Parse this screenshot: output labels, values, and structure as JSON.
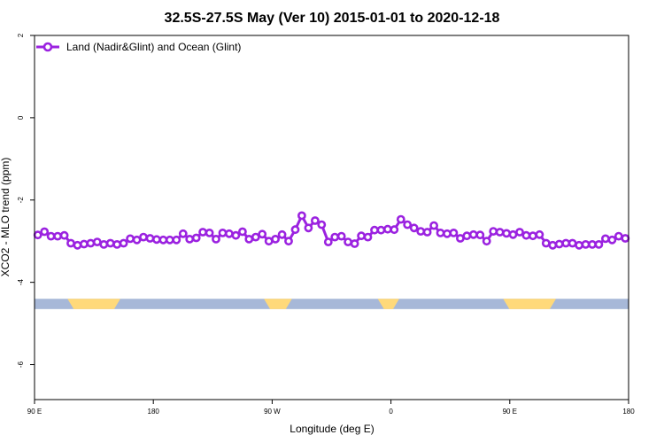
{
  "chart_data": {
    "type": "line",
    "title": "32.5S-27.5S May (Ver 10)   2015-01-01 to 2020-12-18",
    "xlabel": "Longitude (deg E)",
    "ylabel": "XCO2 - MLO trend (ppm)",
    "xlim": [
      90,
      450
    ],
    "ylim": [
      -8,
      2
    ],
    "x_ticks": [
      {
        "value": 90,
        "label": "90 E"
      },
      {
        "value": 162,
        "label": "180"
      },
      {
        "value": 234,
        "label": "90 W"
      },
      {
        "value": 306,
        "label": "0"
      },
      {
        "value": 378,
        "label": "90 E"
      },
      {
        "value": 450,
        "label": "180"
      }
    ],
    "y_ticks": [
      {
        "value": 2,
        "label": "2"
      },
      {
        "value": 0,
        "label": "0"
      },
      {
        "value": -2,
        "label": "-2"
      },
      {
        "value": -4,
        "label": "-4"
      },
      {
        "value": -6,
        "label": "-6"
      }
    ],
    "legend": {
      "position": "top-left"
    },
    "series": [
      {
        "name": "Land (Nadir&Glint) and Ocean (Glint)",
        "color": "#9b22e0",
        "x": [
          92,
          96,
          100,
          104,
          108,
          112,
          116,
          120,
          124,
          128,
          132,
          136,
          140,
          144,
          148,
          152,
          156,
          160,
          164,
          168,
          172,
          176,
          180,
          184,
          188,
          192,
          196,
          200,
          204,
          208,
          212,
          216,
          220,
          224,
          228,
          232,
          236,
          240,
          244,
          248,
          252,
          256,
          260,
          264,
          268,
          272,
          276,
          280,
          284,
          288,
          292,
          296,
          300,
          304,
          308,
          312,
          316,
          320,
          324,
          328,
          332,
          336,
          340,
          344,
          348,
          352,
          356,
          360,
          364,
          368,
          372,
          376,
          380,
          384,
          388,
          392,
          396,
          400,
          404,
          408,
          412,
          416,
          420,
          424,
          428,
          432,
          436,
          440,
          444,
          448
        ],
        "y": [
          -2.85,
          -2.77,
          -2.88,
          -2.88,
          -2.86,
          -3.05,
          -3.1,
          -3.07,
          -3.05,
          -3.02,
          -3.08,
          -3.05,
          -3.08,
          -3.05,
          -2.94,
          -2.97,
          -2.9,
          -2.93,
          -2.96,
          -2.97,
          -2.97,
          -2.97,
          -2.82,
          -2.95,
          -2.92,
          -2.78,
          -2.8,
          -2.95,
          -2.8,
          -2.82,
          -2.86,
          -2.77,
          -2.95,
          -2.9,
          -2.83,
          -3.0,
          -2.95,
          -2.84,
          -3.0,
          -2.72,
          -2.38,
          -2.68,
          -2.5,
          -2.6,
          -3.02,
          -2.9,
          -2.88,
          -3.02,
          -3.06,
          -2.87,
          -2.9,
          -2.73,
          -2.73,
          -2.71,
          -2.72,
          -2.47,
          -2.6,
          -2.68,
          -2.76,
          -2.78,
          -2.62,
          -2.8,
          -2.82,
          -2.8,
          -2.93,
          -2.87,
          -2.84,
          -2.85,
          -3.0,
          -2.76,
          -2.78,
          -2.81,
          -2.84,
          -2.78,
          -2.86,
          -2.87,
          -2.84,
          -3.05,
          -3.1,
          -3.07,
          -3.05,
          -3.05,
          -3.1,
          -3.08,
          -3.08,
          -3.08,
          -2.94,
          -2.97,
          -2.88,
          -2.93
        ]
      }
    ],
    "land_ocean_bar": {
      "y_range": [
        -4.65,
        -4.4
      ],
      "ocean_color": "#a7b8d8",
      "land_color": "#ffd97a",
      "land_segments": [
        [
          110,
          142
        ],
        [
          229,
          246
        ],
        [
          298,
          311
        ],
        [
          374,
          406
        ]
      ]
    }
  }
}
